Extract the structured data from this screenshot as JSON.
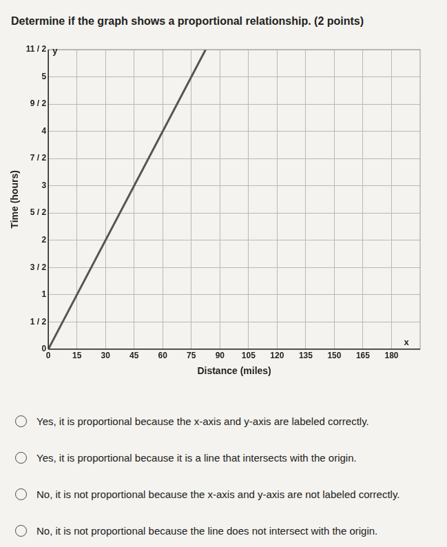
{
  "question": "Determine if the graph shows a proportional relationship. (2 points)",
  "chart_data": {
    "type": "line",
    "x_label": "Distance (miles)",
    "y_label": "Time (hours)",
    "x": [
      0,
      82.5
    ],
    "values": [
      0,
      5.5
    ],
    "color": "#555555",
    "xlim": [
      0,
      195
    ],
    "xticks": [
      0,
      15,
      30,
      45,
      60,
      75,
      90,
      105,
      120,
      135,
      150,
      165,
      180
    ],
    "ylim": [
      0,
      5.5
    ],
    "yticks": [
      0,
      {
        "value": 0.5,
        "label": "1 / 2"
      },
      1,
      {
        "value": 1.5,
        "label": "3 / 2"
      },
      2,
      {
        "value": 2.5,
        "label": "5 / 2"
      },
      3,
      {
        "value": 3.5,
        "label": "7 / 2"
      },
      4,
      {
        "value": 4.5,
        "label": "9 / 2"
      },
      5,
      {
        "value": 5.5,
        "label": "11 / 2"
      }
    ],
    "grid": true,
    "annotations": [
      "y",
      "x"
    ]
  },
  "options": [
    "Yes, it is proportional because the x-axis and y-axis are labeled correctly.",
    "Yes, it is proportional because it is a line that intersects with the origin.",
    "No, it is not proportional because the x-axis and y-axis are not labeled correctly.",
    "No, it is not proportional because the line does not intersect with the origin."
  ]
}
